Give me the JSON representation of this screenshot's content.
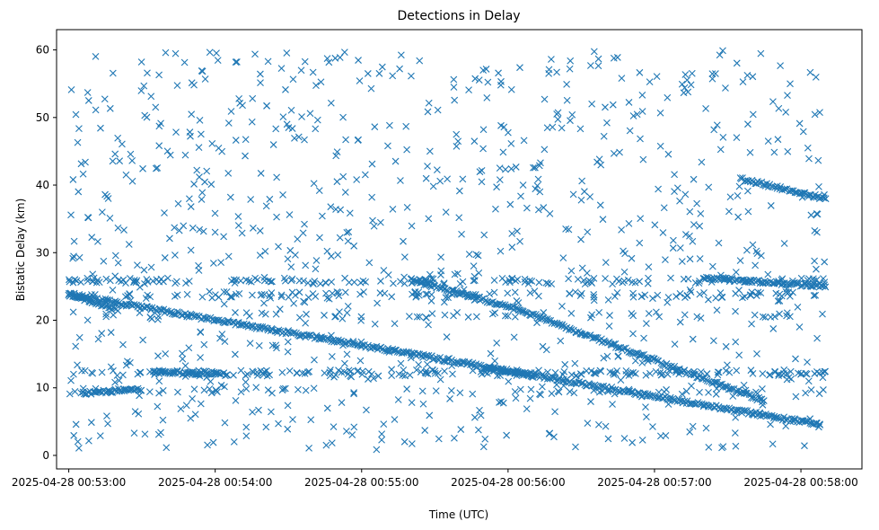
{
  "chart_data": {
    "type": "scatter",
    "title": "Detections in Delay",
    "xlabel": "Time (UTC)",
    "ylabel": "Bistatic Delay (km)",
    "xlim": [
      "2025-04-28 00:52:55",
      "2025-04-28 00:58:25"
    ],
    "ylim": [
      -2,
      63
    ],
    "xticks": [
      "2025-04-28 00:53:00",
      "2025-04-28 00:54:00",
      "2025-04-28 00:55:00",
      "2025-04-28 00:56:00",
      "2025-04-28 00:57:00",
      "2025-04-28 00:58:00"
    ],
    "yticks": [
      "0",
      "10",
      "20",
      "30",
      "40",
      "50",
      "60"
    ],
    "marker": "x",
    "color": "#1f77b4",
    "grid": false,
    "legend": "none",
    "series": [
      {
        "structured_tracks": [
          {
            "t_start": "00:53:00",
            "t_end": "00:58:08",
            "y_start": 23.8,
            "y_end": 4.5,
            "description": "descending track"
          },
          {
            "t_start": "00:55:20",
            "t_end": "00:56:05",
            "y_start": 26.0,
            "y_end": 21.5
          },
          {
            "t_start": "00:56:05",
            "t_end": "00:57:45",
            "y_start": 21.5,
            "y_end": 8.0
          },
          {
            "t_start": "00:57:35",
            "t_end": "00:58:10",
            "y_start": 41.0,
            "y_end": 38.0
          },
          {
            "t_start": "00:57:20",
            "t_end": "00:58:10",
            "y_start": 26.3,
            "y_end": 25.0
          },
          {
            "t_start": "00:53:35",
            "t_end": "00:54:05",
            "y_start": 12.3,
            "y_end": 12.0
          },
          {
            "t_start": "00:55:50",
            "t_end": "00:56:10",
            "y_start": 13.0,
            "y_end": 11.8
          },
          {
            "t_start": "00:53:00",
            "t_end": "00:53:20",
            "y_start": 23.8,
            "y_end": 21.5
          },
          {
            "t_start": "00:53:05",
            "t_end": "00:53:30",
            "y_start": 9.2,
            "y_end": 9.8
          }
        ],
        "scattered_points_approx": "≈900 additional detections uniformly spread over 0–60 km between 00:53:00 and 00:58:10"
      }
    ]
  }
}
